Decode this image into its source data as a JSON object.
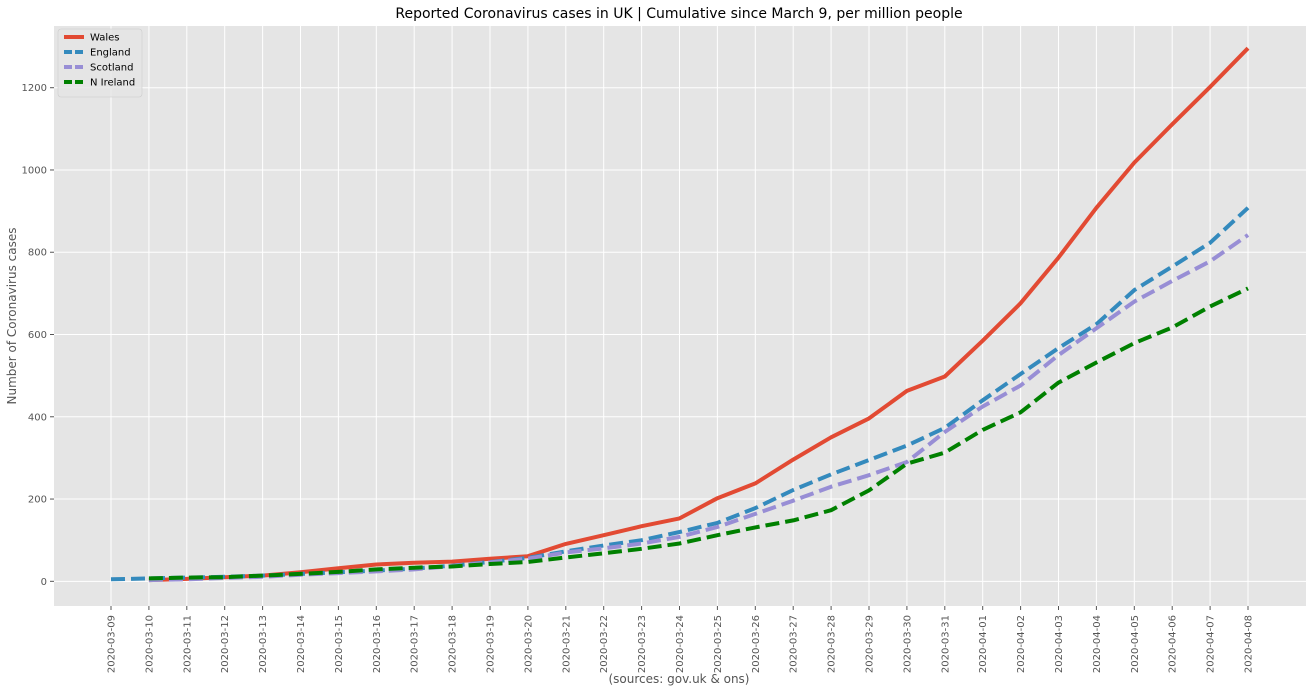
{
  "chart_data": {
    "type": "line",
    "title": "Reported Coronavirus cases in UK | Cumulative since March 9, per million people",
    "xlabel": "(sources: gov.uk & ons)",
    "ylabel": "Number of Coronavirus cases",
    "x": [
      "2020-03-09",
      "2020-03-10",
      "2020-03-11",
      "2020-03-12",
      "2020-03-13",
      "2020-03-14",
      "2020-03-15",
      "2020-03-16",
      "2020-03-17",
      "2020-03-18",
      "2020-03-19",
      "2020-03-20",
      "2020-03-21",
      "2020-03-22",
      "2020-03-23",
      "2020-03-24",
      "2020-03-25",
      "2020-03-26",
      "2020-03-27",
      "2020-03-28",
      "2020-03-29",
      "2020-03-30",
      "2020-03-31",
      "2020-04-01",
      "2020-04-02",
      "2020-04-03",
      "2020-04-04",
      "2020-04-05",
      "2020-04-06",
      "2020-04-07",
      "2020-04-08"
    ],
    "ylim": [
      -60,
      1350
    ],
    "yticks": [
      0,
      200,
      400,
      600,
      800,
      1000,
      1200
    ],
    "grid": true,
    "legend_position": "upper-left",
    "series": [
      {
        "name": "Wales",
        "color": "#E24A33",
        "dash": "solid",
        "values": [
          null,
          3,
          6,
          10,
          14,
          22,
          32,
          41,
          45,
          48,
          55,
          61,
          91,
          112,
          134,
          153,
          202,
          238,
          296,
          350,
          396,
          463,
          498,
          585,
          676,
          787,
          908,
          1018,
          1111,
          1202,
          1296
        ]
      },
      {
        "name": "England",
        "color": "#348ABD",
        "dash": "dashed",
        "values": [
          5,
          7,
          9,
          11,
          14,
          18,
          22,
          26,
          31,
          38,
          47,
          57,
          73,
          87,
          100,
          120,
          142,
          178,
          222,
          260,
          295,
          330,
          373,
          440,
          504,
          567,
          625,
          708,
          765,
          823,
          908
        ]
      },
      {
        "name": "Scotland",
        "color": "#988ED5",
        "dash": "dashed",
        "values": [
          null,
          3,
          5,
          8,
          11,
          16,
          20,
          24,
          29,
          37,
          46,
          55,
          70,
          80,
          92,
          108,
          132,
          164,
          196,
          230,
          258,
          290,
          363,
          425,
          476,
          550,
          615,
          680,
          730,
          778,
          842
        ]
      },
      {
        "name": "N Ireland",
        "color": "#008000",
        "dash": "dashed",
        "values": [
          null,
          7,
          9,
          10,
          14,
          18,
          23,
          29,
          33,
          36,
          42,
          47,
          58,
          68,
          79,
          92,
          112,
          131,
          148,
          173,
          221,
          286,
          313,
          368,
          411,
          483,
          532,
          579,
          617,
          668,
          712
        ]
      }
    ]
  }
}
